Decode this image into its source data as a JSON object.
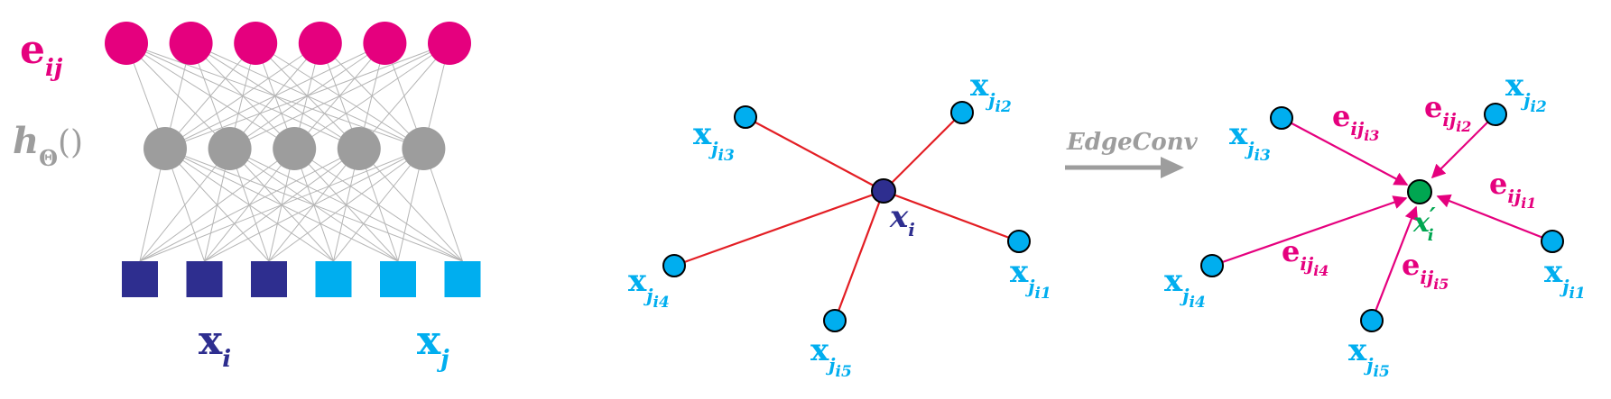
{
  "colors": {
    "magenta": "#e5007e",
    "gray": "#9d9d9d",
    "darkblue": "#2e2e8f",
    "lightblue": "#00aeef",
    "red": "#e31e24",
    "green": "#00a651",
    "arrow_gray": "#9d9d9d"
  },
  "mlp": {
    "output_label": {
      "base": "e",
      "sub": "ij"
    },
    "hidden_label": {
      "base": "h",
      "sub": "Θ",
      "suffix": "()"
    },
    "input_left_label": {
      "base": "x",
      "sub": "i"
    },
    "input_right_label": {
      "base": "x",
      "sub": "j"
    },
    "output_node_count": 6,
    "hidden_node_count": 5,
    "input_left_count": 3,
    "input_right_count": 3
  },
  "left_graph": {
    "center": {
      "base": "x",
      "sub": "i"
    },
    "neighbors": [
      {
        "base": "x",
        "sub": "j",
        "subsub": "i1"
      },
      {
        "base": "x",
        "sub": "j",
        "subsub": "i2"
      },
      {
        "base": "x",
        "sub": "j",
        "subsub": "i3"
      },
      {
        "base": "x",
        "sub": "j",
        "subsub": "i4"
      },
      {
        "base": "x",
        "sub": "j",
        "subsub": "i5"
      }
    ]
  },
  "operation": {
    "label": "EdgeConv"
  },
  "right_graph": {
    "center": {
      "base": "x",
      "prime": "′",
      "sub": "i"
    },
    "neighbors": [
      {
        "base": "x",
        "sub": "j",
        "subsub": "i1"
      },
      {
        "base": "x",
        "sub": "j",
        "subsub": "i2"
      },
      {
        "base": "x",
        "sub": "j",
        "subsub": "i3"
      },
      {
        "base": "x",
        "sub": "j",
        "subsub": "i4"
      },
      {
        "base": "x",
        "sub": "j",
        "subsub": "i5"
      }
    ],
    "edges": [
      {
        "base": "e",
        "sub": "ij",
        "subsub": "i1"
      },
      {
        "base": "e",
        "sub": "ij",
        "subsub": "i2"
      },
      {
        "base": "e",
        "sub": "ij",
        "subsub": "i3"
      },
      {
        "base": "e",
        "sub": "ij",
        "subsub": "i4"
      },
      {
        "base": "e",
        "sub": "ij",
        "subsub": "i5"
      }
    ]
  }
}
